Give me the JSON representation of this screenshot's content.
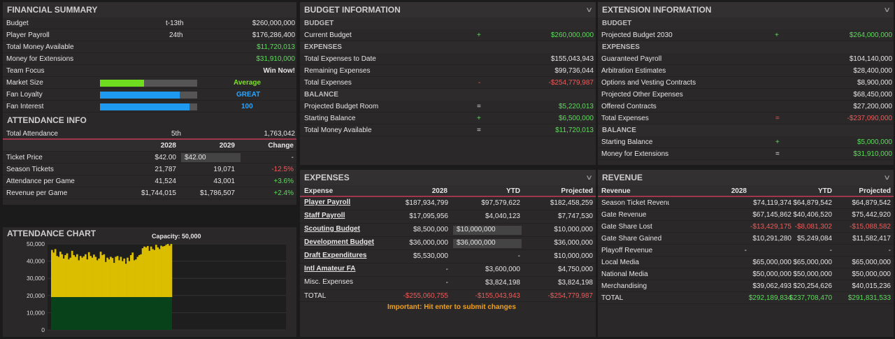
{
  "financial": {
    "title": "FINANCIAL SUMMARY",
    "budget_label": "Budget",
    "budget_rank": "t-13th",
    "budget_value": "$260,000,000",
    "payroll_label": "Player Payroll",
    "payroll_rank": "24th",
    "payroll_value": "$176,286,400",
    "tma_label": "Total Money Available",
    "tma_value": "$11,720,013",
    "mfe_label": "Money for Extensions",
    "mfe_value": "$31,910,000",
    "focus_label": "Team Focus",
    "focus_value": "Win Now!",
    "market_label": "Market Size",
    "market_value": "Average",
    "market_level": 0.45,
    "loyalty_label": "Fan Loyalty",
    "loyalty_value": "GREAT",
    "loyalty_level": 0.82,
    "interest_label": "Fan Interest",
    "interest_value": "100",
    "interest_level": 0.92
  },
  "attendance": {
    "title": "ATTENDANCE INFO",
    "total_label": "Total Attendance",
    "total_rank": "5th",
    "total_value": "1,763,042",
    "col1": "2028",
    "col2": "2029",
    "col3": "Change",
    "rows": [
      {
        "label": "Ticket Price",
        "a": "$42.00",
        "b": "$42.00",
        "c": "-",
        "cls": ""
      },
      {
        "label": "Season Tickets",
        "a": "21,787",
        "b": "19,071",
        "c": "-12.5%",
        "cls": "r"
      },
      {
        "label": "Attendance per Game",
        "a": "41,524",
        "b": "43,001",
        "c": "+3.6%",
        "cls": "g"
      },
      {
        "label": "Revenue per Game",
        "a": "$1,744,015",
        "b": "$1,786,507",
        "c": "+2.4%",
        "cls": "g"
      }
    ]
  },
  "chart_data": {
    "type": "bar",
    "title": "ATTENDANCE CHART",
    "capacity_label": "Capacity: 50,000",
    "yticks": [
      "50,000",
      "40,000",
      "30,000",
      "20,000",
      "10,000",
      "0"
    ],
    "ylim": [
      0,
      50000
    ],
    "season_ticket_base": 19071,
    "values": [
      46500,
      45000,
      47000,
      43000,
      42500,
      45500,
      44000,
      41500,
      43500,
      44500,
      41000,
      42000,
      46000,
      43500,
      42500,
      44000,
      40500,
      43000,
      42000,
      42800,
      44000,
      41000,
      45200,
      43000,
      42000,
      43800,
      42500,
      40500,
      41500,
      45500,
      43500,
      44000,
      39500,
      42000,
      41000,
      42500,
      41800,
      39000,
      42500,
      43000,
      40500,
      42500,
      40000,
      41500,
      38500,
      42000,
      40000,
      43500,
      45000,
      40500,
      41000,
      42500,
      43500,
      44000,
      47500,
      48500,
      48000,
      48800,
      46000,
      48500,
      47000,
      46500,
      49500,
      48000,
      47000,
      49000,
      48500,
      48800,
      49500,
      50000,
      49000,
      50000
    ]
  },
  "budget": {
    "title": "BUDGET INFORMATION",
    "sec1": "BUDGET",
    "cb_label": "Current Budget",
    "cb_sign": "+",
    "cb_value": "$260,000,000",
    "sec2": "EXPENSES",
    "ted_label": "Total Expenses to Date",
    "ted_value": "$155,043,943",
    "re_label": "Remaining Expenses",
    "re_value": "$99,736,044",
    "te_label": "Total Expenses",
    "te_sign": "-",
    "te_value": "-$254,779,987",
    "sec3": "BALANCE",
    "pbr_label": "Projected Budget Room",
    "pbr_sign": "=",
    "pbr_value": "$5,220,013",
    "sb_label": "Starting Balance",
    "sb_sign": "+",
    "sb_value": "$6,500,000",
    "tma_label": "Total Money Available",
    "tma_sign": "=",
    "tma_value": "$11,720,013"
  },
  "extension": {
    "title": "EXTENSION INFORMATION",
    "sec1": "BUDGET",
    "pb_label": "Projected Budget 2030",
    "pb_sign": "+",
    "pb_value": "$264,000,000",
    "sec2": "EXPENSES",
    "rows": [
      {
        "label": "Guaranteed Payroll",
        "value": "$104,140,000"
      },
      {
        "label": "Arbitration Estimates",
        "value": "$28,400,000"
      },
      {
        "label": "Options and Vesting Contracts",
        "value": "$8,900,000"
      },
      {
        "label": "Projected Other Expenses",
        "value": "$68,450,000"
      },
      {
        "label": "Offered Contracts",
        "value": "$27,200,000"
      }
    ],
    "te_label": "Total Expenses",
    "te_sign": "=",
    "te_value": "-$237,090,000",
    "sec3": "BALANCE",
    "sb_label": "Starting Balance",
    "sb_sign": "+",
    "sb_value": "$5,000,000",
    "mfe_label": "Money for Extensions",
    "mfe_sign": "=",
    "mfe_value": "$31,910,000"
  },
  "expenses": {
    "title": "EXPENSES",
    "h0": "Expense",
    "h1": "2028",
    "h2": "YTD",
    "h3": "Projected",
    "rows": [
      {
        "label": "Player Payroll",
        "a": "$187,934,799",
        "b": "$97,579,622",
        "c": "$182,458,259",
        "link": true
      },
      {
        "label": "Staff Payroll",
        "a": "$17,095,956",
        "b": "$4,040,123",
        "c": "$7,747,530",
        "link": true
      },
      {
        "label": "Scouting Budget",
        "a": "$8,500,000",
        "b": "$10,000,000",
        "c": "$10,000,000",
        "link": true,
        "box": true
      },
      {
        "label": "Development Budget",
        "a": "$36,000,000",
        "b": "$36,000,000",
        "c": "$36,000,000",
        "link": true,
        "box": true
      },
      {
        "label": "Draft Expenditures",
        "a": "$5,530,000",
        "b": "-",
        "c": "$10,000,000",
        "link": true
      },
      {
        "label": "Intl Amateur FA",
        "a": "-",
        "b": "$3,600,000",
        "c": "$4,750,000",
        "link": true
      },
      {
        "label": "Misc. Expenses",
        "a": "-",
        "b": "$3,824,198",
        "c": "$3,824,198",
        "link": false
      }
    ],
    "total_label": "TOTAL",
    "total_a": "-$255,060,755",
    "total_b": "-$155,043,943",
    "total_c": "-$254,779,987",
    "note": "Important: Hit enter to submit changes"
  },
  "revenue": {
    "title": "REVENUE",
    "h0": "Revenue",
    "h1": "2028",
    "h2": "YTD",
    "h3": "Projected",
    "rows": [
      {
        "label": "Season Ticket Revenu",
        "a": "$74,119,374",
        "b": "$64,879,542",
        "c": "$64,879,542",
        "cls": ""
      },
      {
        "label": "Gate Revenue",
        "a": "$67,145,862",
        "b": "$40,406,520",
        "c": "$75,442,920",
        "cls": ""
      },
      {
        "label": "Gate Share Lost",
        "a": "-$13,429,175",
        "b": "-$8,081,302",
        "c": "-$15,088,582",
        "cls": "r"
      },
      {
        "label": "Gate Share Gained",
        "a": "$10,291,280",
        "b": "$5,249,084",
        "c": "$11,582,417",
        "cls": ""
      },
      {
        "label": "Playoff Revenue",
        "a": "-",
        "b": "-",
        "c": "-",
        "cls": ""
      },
      {
        "label": "Local Media",
        "a": "$65,000,000",
        "b": "$65,000,000",
        "c": "$65,000,000",
        "cls": ""
      },
      {
        "label": "National Media",
        "a": "$50,000,000",
        "b": "$50,000,000",
        "c": "$50,000,000",
        "cls": ""
      },
      {
        "label": "Merchandising",
        "a": "$39,062,493",
        "b": "$20,254,626",
        "c": "$40,015,236",
        "cls": ""
      }
    ],
    "total_label": "TOTAL",
    "total_a": "$292,189,834",
    "total_b": "$237,708,470",
    "total_c": "$291,831,533"
  }
}
